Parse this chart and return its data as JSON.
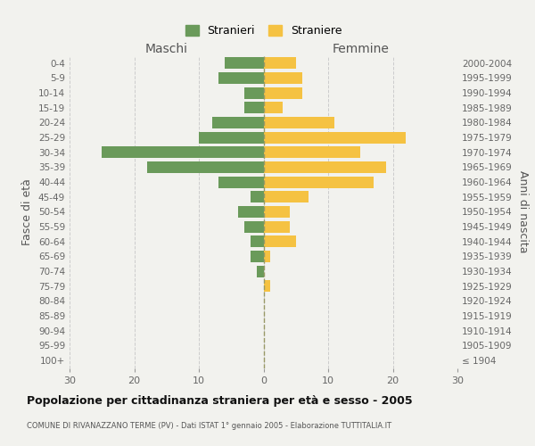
{
  "age_groups": [
    "0-4",
    "5-9",
    "10-14",
    "15-19",
    "20-24",
    "25-29",
    "30-34",
    "35-39",
    "40-44",
    "45-49",
    "50-54",
    "55-59",
    "60-64",
    "65-69",
    "70-74",
    "75-79",
    "80-84",
    "85-89",
    "90-94",
    "95-99",
    "100+"
  ],
  "birth_years": [
    "2000-2004",
    "1995-1999",
    "1990-1994",
    "1985-1989",
    "1980-1984",
    "1975-1979",
    "1970-1974",
    "1965-1969",
    "1960-1964",
    "1955-1959",
    "1950-1954",
    "1945-1949",
    "1940-1944",
    "1935-1939",
    "1930-1934",
    "1925-1929",
    "1920-1924",
    "1915-1919",
    "1910-1914",
    "1905-1909",
    "≤ 1904"
  ],
  "males": [
    6,
    7,
    3,
    3,
    8,
    10,
    25,
    18,
    7,
    2,
    4,
    3,
    2,
    2,
    1,
    0,
    0,
    0,
    0,
    0,
    0
  ],
  "females": [
    5,
    6,
    6,
    3,
    11,
    22,
    15,
    19,
    17,
    7,
    4,
    4,
    5,
    1,
    0,
    1,
    0,
    0,
    0,
    0,
    0
  ],
  "male_color": "#6a9a5a",
  "female_color": "#f5c242",
  "background_color": "#f2f2ee",
  "grid_color": "#cccccc",
  "center_line_color": "#999966",
  "title": "Popolazione per cittadinanza straniera per età e sesso - 2005",
  "subtitle": "COMUNE DI RIVANAZZANO TERME (PV) - Dati ISTAT 1° gennaio 2005 - Elaborazione TUTTITALIA.IT",
  "left_label": "Maschi",
  "right_label": "Femmine",
  "y_left_label": "Fasce di età",
  "y_right_label": "Anni di nascita",
  "legend_male": "Stranieri",
  "legend_female": "Straniere",
  "xlim": 30
}
